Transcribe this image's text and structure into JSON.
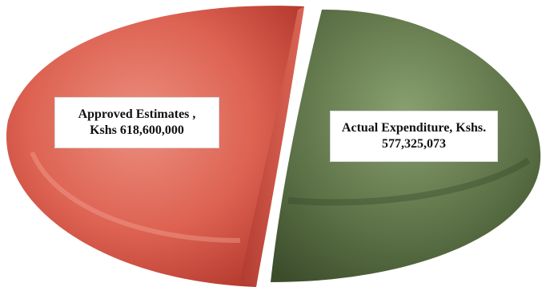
{
  "chart_data": {
    "type": "pie",
    "title": "",
    "series": [
      {
        "label_line1": "Approved Estimates ,",
        "label_line2": "Kshs 618,600,000",
        "value": 618600000,
        "color": "#d9574a"
      },
      {
        "label_line1": "Actual Expenditure, Kshs.",
        "label_line2": "577,325,073",
        "value": 577325073,
        "color": "#5d7048"
      }
    ],
    "style": "3d-exploded"
  }
}
